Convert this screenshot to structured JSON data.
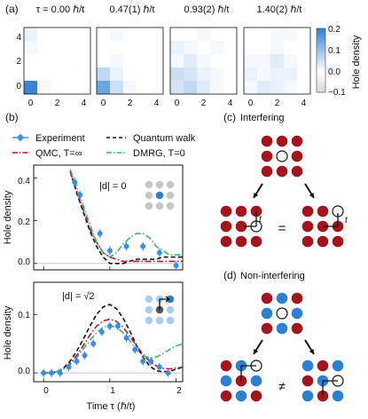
{
  "panel_labels": {
    "a": "(a)",
    "b": "(b)",
    "c": "(c)",
    "d": "(d)"
  },
  "panel_a": {
    "titles": [
      "τ = 0.00 ℏ/t",
      "0.47(1) ℏ/t",
      "0.93(2) ℏ/t",
      "1.40(2) ℏ/t"
    ],
    "xticks": [
      "0",
      "2",
      "4"
    ],
    "yticks": [
      "0",
      "2",
      "4"
    ],
    "colorbar_label": "Hole density",
    "colorbar_ticks": [
      "0.2",
      "0.1",
      "0.0",
      "−0.1"
    ],
    "colormap": {
      "low": "#d9d9d9",
      "zero": "#ffffff",
      "high": "#2e7fd3"
    },
    "grids": [
      [
        [
          0.02,
          0.0,
          0.0,
          0.0,
          0.0
        ],
        [
          0.01,
          0.0,
          0.0,
          0.0,
          0.0
        ],
        [
          0.0,
          0.0,
          0.0,
          0.0,
          0.0
        ],
        [
          0.0,
          0.0,
          0.0,
          0.0,
          0.0
        ],
        [
          0.19,
          0.01,
          0.0,
          0.0,
          0.0
        ]
      ],
      [
        [
          0.0,
          0.01,
          0.0,
          0.0,
          0.0
        ],
        [
          0.0,
          0.0,
          0.0,
          0.0,
          0.0
        ],
        [
          0.0,
          0.01,
          0.0,
          0.0,
          0.0
        ],
        [
          0.06,
          0.02,
          0.0,
          0.0,
          0.0
        ],
        [
          0.14,
          0.05,
          0.01,
          0.0,
          0.0
        ]
      ],
      [
        [
          0.0,
          0.0,
          0.01,
          0.0,
          0.0
        ],
        [
          0.02,
          0.01,
          0.0,
          0.01,
          0.0
        ],
        [
          0.01,
          0.03,
          0.01,
          0.0,
          0.0
        ],
        [
          0.05,
          0.04,
          0.02,
          0.01,
          0.0
        ],
        [
          0.04,
          0.06,
          0.03,
          0.01,
          0.0
        ]
      ],
      [
        [
          0.0,
          0.0,
          0.01,
          0.01,
          0.0
        ],
        [
          0.0,
          0.0,
          0.01,
          0.0,
          0.0
        ],
        [
          0.01,
          0.01,
          0.03,
          0.01,
          0.0
        ],
        [
          0.02,
          0.01,
          0.02,
          0.02,
          0.0
        ],
        [
          0.01,
          0.03,
          0.02,
          0.01,
          0.0
        ]
      ]
    ]
  },
  "panel_b": {
    "legend": {
      "experiment": "Experiment",
      "quantum_walk": "Quantum walk",
      "qmc": "QMC, T=∞",
      "dmrg": "DMRG, T=0"
    },
    "colors": {
      "experiment": "#3b8ee6",
      "quantum_walk": "#111111",
      "qmc": "#b8113a",
      "dmrg": "#3cb371"
    },
    "top_annotation": "|d| = 0",
    "bottom_annotation": "|d| = √2",
    "ylabel": "Hole density",
    "xlabel": "Time τ (ℏ/t)",
    "xticks": [
      "0",
      "1",
      "2"
    ],
    "top_yticks": [
      "0.0",
      "0.2",
      "0.4"
    ],
    "bottom_yticks": [
      "0.0",
      "0.1"
    ]
  },
  "panel_c": {
    "title": "Interfering",
    "equals": "=",
    "hop_label": "t"
  },
  "panel_d": {
    "title": "Non-interfering",
    "not_equals": "≠"
  },
  "chart_data": [
    {
      "type": "line",
      "title": "",
      "annotation": "|d| = 0",
      "xlabel": "Time τ (ℏ/t)",
      "ylabel": "Hole density",
      "xlim": [
        -0.15,
        2.1
      ],
      "ylim": [
        -0.03,
        0.46
      ],
      "series": [
        {
          "name": "Experiment",
          "kind": "points",
          "x": [
            0.47,
            0.55,
            0.85,
            1.0,
            1.25,
            1.5,
            1.75,
            2.0
          ],
          "y": [
            0.38,
            0.32,
            0.14,
            0.06,
            0.08,
            0.08,
            0.05,
            -0.01
          ],
          "err": [
            0.02,
            0.02,
            0.02,
            0.02,
            0.02,
            0.02,
            0.02,
            0.02
          ]
        },
        {
          "name": "Quantum walk",
          "kind": "dashed",
          "x": [
            0.4,
            0.5,
            0.6,
            0.7,
            0.8,
            0.9,
            1.0,
            1.1,
            1.2,
            1.3,
            1.4,
            1.5,
            1.6,
            1.7,
            1.8,
            1.9,
            2.0,
            2.1
          ],
          "y": [
            0.43,
            0.33,
            0.24,
            0.15,
            0.08,
            0.03,
            0.0,
            0.0,
            0.0,
            0.01,
            0.02,
            0.02,
            0.02,
            0.02,
            0.03,
            0.03,
            0.03,
            0.03
          ]
        },
        {
          "name": "QMC, T=∞",
          "kind": "dashdot",
          "x": [
            0.4,
            0.5,
            0.6,
            0.7,
            0.8,
            0.9,
            1.0,
            1.1,
            1.2,
            1.3,
            1.4,
            1.5,
            1.6,
            1.7,
            1.8,
            1.9,
            2.0,
            2.1
          ],
          "y": [
            0.43,
            0.34,
            0.25,
            0.16,
            0.1,
            0.05,
            0.03,
            0.02,
            0.01,
            0.01,
            0.01,
            0.01,
            0.01,
            0.01,
            0.01,
            0.01,
            0.01,
            0.01
          ]
        },
        {
          "name": "DMRG, T=0",
          "kind": "dashdot",
          "x": [
            0.4,
            0.5,
            0.6,
            0.7,
            0.8,
            0.9,
            1.0,
            1.1,
            1.2,
            1.3,
            1.4,
            1.5,
            1.6,
            1.7,
            1.8,
            1.9,
            2.0,
            2.1
          ],
          "y": [
            0.44,
            0.36,
            0.27,
            0.18,
            0.1,
            0.05,
            0.03,
            0.05,
            0.09,
            0.12,
            0.14,
            0.14,
            0.12,
            0.08,
            0.06,
            0.04,
            0.04,
            0.04
          ]
        }
      ]
    },
    {
      "type": "line",
      "title": "",
      "annotation": "|d| = √2",
      "xlabel": "Time τ (ℏ/t)",
      "ylabel": "Hole density",
      "xlim": [
        -0.15,
        2.1
      ],
      "ylim": [
        -0.015,
        0.155
      ],
      "series": [
        {
          "name": "Experiment",
          "kind": "points",
          "x": [
            0.0,
            0.12,
            0.25,
            0.38,
            0.5,
            0.62,
            0.75,
            0.88,
            1.0,
            1.12,
            1.25,
            1.38,
            1.5,
            1.62,
            1.75,
            1.88
          ],
          "y": [
            0.0,
            0.0,
            0.0,
            0.01,
            0.02,
            0.03,
            0.05,
            0.07,
            0.08,
            0.08,
            0.06,
            0.04,
            0.02,
            0.02,
            0.01,
            0.0
          ],
          "err": [
            0.007,
            0.007,
            0.007,
            0.007,
            0.007,
            0.007,
            0.007,
            0.007,
            0.007,
            0.007,
            0.007,
            0.007,
            0.007,
            0.007,
            0.007,
            0.007
          ]
        },
        {
          "name": "Quantum walk",
          "kind": "dashed",
          "x": [
            0.0,
            0.1,
            0.2,
            0.3,
            0.4,
            0.5,
            0.6,
            0.7,
            0.8,
            0.9,
            1.0,
            1.1,
            1.2,
            1.3,
            1.4,
            1.5,
            1.6,
            1.7,
            1.8,
            1.9,
            2.0,
            2.1
          ],
          "y": [
            0.0,
            0.0,
            0.002,
            0.008,
            0.02,
            0.037,
            0.058,
            0.08,
            0.1,
            0.113,
            0.117,
            0.11,
            0.094,
            0.072,
            0.048,
            0.027,
            0.012,
            0.004,
            0.002,
            0.003,
            0.006,
            0.01
          ]
        },
        {
          "name": "QMC, T=∞",
          "kind": "dashdot",
          "x": [
            0.0,
            0.1,
            0.2,
            0.3,
            0.4,
            0.5,
            0.6,
            0.7,
            0.8,
            0.9,
            1.0,
            1.1,
            1.2,
            1.3,
            1.4,
            1.5,
            1.6,
            1.7,
            1.8,
            1.9,
            2.0,
            2.1
          ],
          "y": [
            0.0,
            0.0,
            0.002,
            0.007,
            0.016,
            0.03,
            0.047,
            0.065,
            0.08,
            0.089,
            0.092,
            0.088,
            0.078,
            0.063,
            0.047,
            0.032,
            0.02,
            0.012,
            0.008,
            0.007,
            0.008,
            0.01
          ]
        },
        {
          "name": "DMRG, T=0",
          "kind": "dashdot",
          "x": [
            0.0,
            0.1,
            0.2,
            0.3,
            0.4,
            0.5,
            0.6,
            0.7,
            0.8,
            0.9,
            1.0,
            1.1,
            1.2,
            1.3,
            1.4,
            1.5,
            1.6,
            1.7,
            1.8,
            1.9,
            2.0,
            2.1
          ],
          "y": [
            0.0,
            0.0,
            0.002,
            0.006,
            0.014,
            0.026,
            0.041,
            0.056,
            0.069,
            0.078,
            0.081,
            0.078,
            0.069,
            0.055,
            0.04,
            0.03,
            0.025,
            0.027,
            0.033,
            0.04,
            0.046,
            0.05
          ]
        }
      ]
    }
  ]
}
